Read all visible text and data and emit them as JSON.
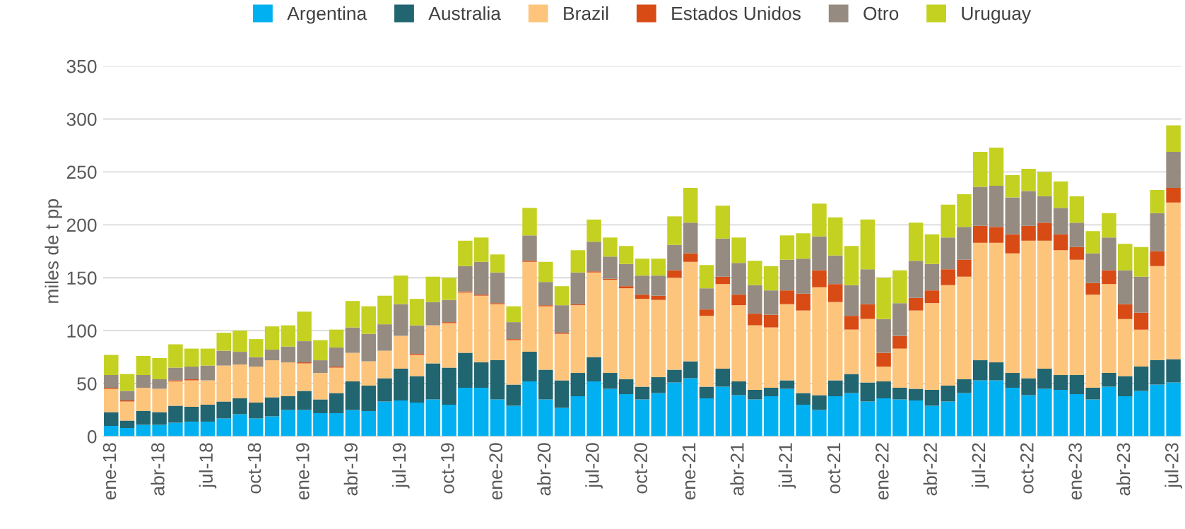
{
  "chart_data": {
    "type": "bar",
    "stacked": true,
    "ylabel": "miles de t pp",
    "ylim": [
      0,
      350
    ],
    "yticks": [
      0,
      50,
      100,
      150,
      200,
      250,
      300,
      350
    ],
    "grid": "y",
    "legend": "top",
    "categories": [
      "ene-18",
      null,
      null,
      "abr-18",
      null,
      null,
      "jul-18",
      null,
      null,
      "oct-18",
      null,
      null,
      "ene-19",
      null,
      null,
      "abr-19",
      null,
      null,
      "jul-19",
      null,
      null,
      "oct-19",
      null,
      null,
      "ene-20",
      null,
      null,
      "abr-20",
      null,
      null,
      "jul-20",
      null,
      null,
      "oct-20",
      null,
      null,
      "ene-21",
      null,
      null,
      "abr-21",
      null,
      null,
      "jul-21",
      null,
      null,
      "oct-21",
      null,
      null,
      "ene-22",
      null,
      null,
      "abr-22",
      null,
      null,
      "jul-22",
      null,
      null,
      "oct-22",
      null,
      null,
      "ene-23",
      null,
      null,
      "abr-23",
      null,
      null,
      "jul-23"
    ],
    "series": [
      {
        "name": "Argentina",
        "color": "#00b0f0",
        "values": [
          10,
          8,
          11,
          11,
          13,
          14,
          14,
          17,
          21,
          17,
          19,
          25,
          25,
          22,
          22,
          25,
          24,
          33,
          34,
          32,
          35,
          30,
          46,
          46,
          35,
          29,
          52,
          35,
          27,
          38,
          52,
          45,
          40,
          35,
          41,
          51,
          55,
          36,
          47,
          39,
          35,
          38,
          45,
          30,
          25,
          38,
          41,
          33,
          36,
          35,
          34,
          29,
          33,
          41,
          53,
          53,
          46,
          39,
          45,
          44,
          40,
          35,
          47,
          38,
          43,
          49,
          51
        ]
      },
      {
        "name": "Australia",
        "color": "#216570",
        "values": [
          13,
          7,
          13,
          12,
          16,
          14,
          16,
          16,
          15,
          15,
          18,
          13,
          18,
          13,
          19,
          27,
          24,
          22,
          30,
          25,
          34,
          35,
          33,
          24,
          37,
          20,
          28,
          28,
          26,
          22,
          23,
          15,
          14,
          12,
          15,
          12,
          16,
          11,
          17,
          13,
          9,
          8,
          8,
          11,
          14,
          15,
          18,
          18,
          16,
          11,
          11,
          15,
          15,
          13,
          19,
          17,
          14,
          16,
          19,
          14,
          18,
          11,
          13,
          19,
          23,
          23,
          22
        ]
      },
      {
        "name": "Brazil",
        "color": "#fdc57c",
        "values": [
          22,
          18,
          22,
          22,
          23,
          25,
          23,
          34,
          32,
          34,
          35,
          32,
          26,
          25,
          24,
          27,
          23,
          26,
          31,
          20,
          36,
          42,
          57,
          63,
          53,
          42,
          85,
          60,
          44,
          64,
          80,
          88,
          86,
          83,
          73,
          87,
          94,
          67,
          80,
          72,
          61,
          57,
          72,
          78,
          102,
          74,
          42,
          60,
          14,
          37,
          74,
          82,
          95,
          97,
          111,
          113,
          113,
          130,
          121,
          118,
          109,
          88,
          84,
          54,
          35,
          89,
          148
        ]
      },
      {
        "name": "Estados Unidos",
        "color": "#d94b14",
        "values": [
          1,
          1,
          0,
          0,
          1,
          1,
          0,
          0,
          0,
          0,
          0,
          0,
          1,
          0,
          1,
          0,
          0,
          0,
          0,
          1,
          0,
          1,
          1,
          1,
          1,
          1,
          1,
          1,
          1,
          1,
          1,
          1,
          2,
          4,
          4,
          7,
          8,
          6,
          7,
          10,
          11,
          12,
          13,
          16,
          16,
          17,
          13,
          14,
          13,
          12,
          12,
          12,
          15,
          16,
          16,
          15,
          18,
          14,
          17,
          15,
          12,
          11,
          13,
          14,
          16,
          14,
          14
        ]
      },
      {
        "name": "Otro",
        "color": "#968b80",
        "values": [
          12,
          9,
          12,
          9,
          12,
          12,
          14,
          14,
          12,
          9,
          10,
          15,
          20,
          12,
          18,
          24,
          26,
          25,
          30,
          27,
          22,
          21,
          24,
          31,
          29,
          16,
          24,
          22,
          26,
          30,
          28,
          21,
          21,
          18,
          19,
          24,
          29,
          20,
          36,
          30,
          27,
          23,
          29,
          33,
          32,
          27,
          29,
          33,
          32,
          31,
          35,
          25,
          30,
          31,
          37,
          39,
          35,
          33,
          25,
          25,
          23,
          28,
          31,
          32,
          34,
          36,
          34
        ]
      },
      {
        "name": "Uruguay",
        "color": "#c4d121",
        "values": [
          19,
          16,
          18,
          20,
          22,
          17,
          16,
          17,
          20,
          17,
          22,
          20,
          28,
          19,
          17,
          25,
          26,
          27,
          27,
          25,
          24,
          21,
          24,
          23,
          17,
          15,
          26,
          19,
          18,
          21,
          21,
          18,
          17,
          16,
          16,
          27,
          33,
          22,
          31,
          24,
          23,
          23,
          23,
          24,
          31,
          36,
          37,
          47,
          39,
          31,
          36,
          28,
          31,
          31,
          33,
          36,
          21,
          21,
          23,
          25,
          25,
          21,
          23,
          25,
          28,
          22,
          25
        ]
      }
    ]
  }
}
